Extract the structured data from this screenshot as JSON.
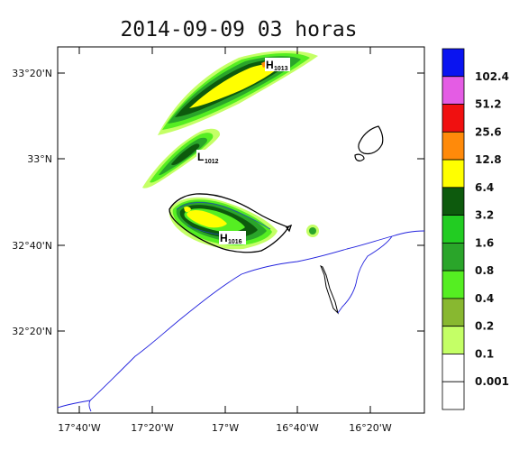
{
  "title": "2014-09-09 03 horas",
  "lon_ticks": [
    "17°40'W",
    "17°20'W",
    "17°W",
    "16°40'W",
    "16°20'W"
  ],
  "lat_ticks": [
    "33°20'N",
    "33°N",
    "32°40'N",
    "32°20'N"
  ],
  "pressure_labels": [
    {
      "letter": "H",
      "value": "1013"
    },
    {
      "letter": "L",
      "value": "1012"
    },
    {
      "letter": "H",
      "value": "1016"
    }
  ],
  "colorbar": {
    "labels": [
      "102.4",
      "51.2",
      "25.6",
      "12.8",
      "6.4",
      "3.2",
      "1.6",
      "0.8",
      "0.4",
      "0.2",
      "0.1",
      "0.001"
    ],
    "colors": [
      "#0a14f0",
      "#e45ce4",
      "#f01010",
      "#ff8a0a",
      "#ffff00",
      "#0d5a0d",
      "#22cc22",
      "#2aa52a",
      "#55ee22",
      "#88b830",
      "#c4ff66",
      "#ffffff",
      "#ffffff"
    ]
  },
  "colors": {
    "precip_light": "#c4ff66",
    "precip_mid": "#55ee22",
    "precip_green": "#2aa52a",
    "precip_dark": "#0d5a0d",
    "precip_yellow": "#ffff00",
    "precip_orange": "#ff8a0a",
    "coastline": "#2222dd",
    "island": "#000000"
  }
}
